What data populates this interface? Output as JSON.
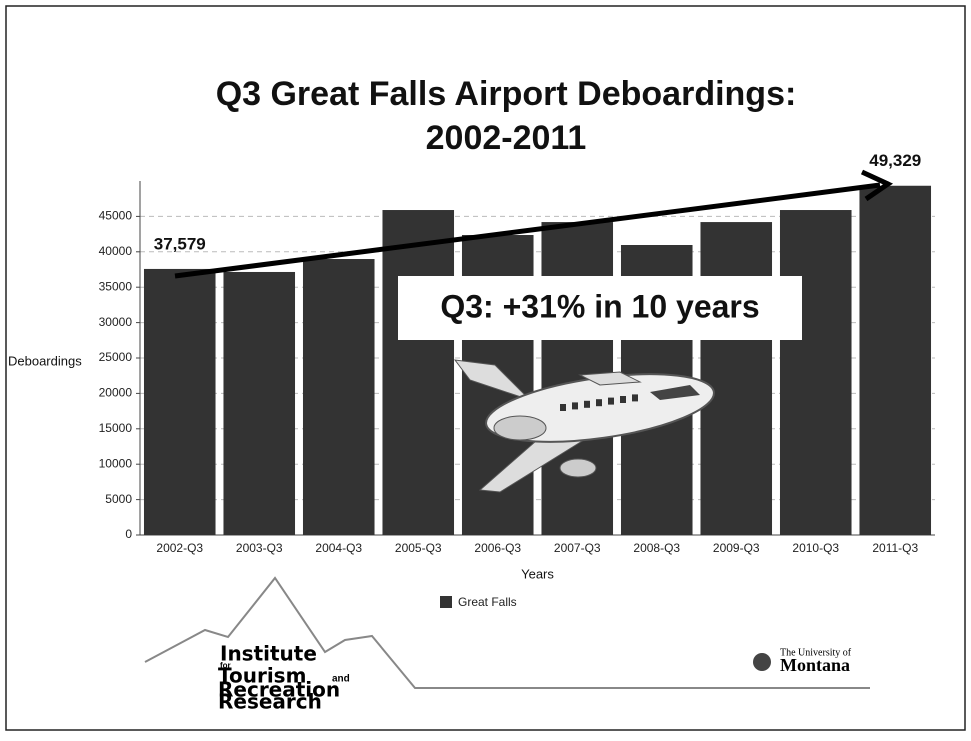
{
  "chart_data": {
    "type": "bar",
    "title": "Q3 Great Falls Airport Deboardings:",
    "subtitle": "2002-2011",
    "categories": [
      "2002-Q3",
      "2003-Q3",
      "2004-Q3",
      "2005-Q3",
      "2006-Q3",
      "2007-Q3",
      "2008-Q3",
      "2009-Q3",
      "2010-Q3",
      "2011-Q3"
    ],
    "series": [
      {
        "name": "Great Falls",
        "color": "#333333",
        "values": [
          37579,
          37150,
          38980,
          45900,
          42370,
          44200,
          40960,
          44200,
          45900,
          49329
        ],
        "value_labels": [
          "37,579",
          null,
          null,
          null,
          null,
          null,
          null,
          null,
          null,
          "49,329"
        ]
      }
    ],
    "ylim": [
      0,
      50000
    ],
    "yticks": [
      0,
      5000,
      10000,
      15000,
      20000,
      25000,
      30000,
      35000,
      40000,
      45000
    ],
    "grid": true,
    "y_label": "Deboardings",
    "x_label": "Years",
    "annotation": "Q3: +31% in 10 years",
    "legend": "bottom"
  },
  "logos": {
    "institute": [
      "Institute",
      "for",
      "Tourism",
      "and",
      "Recreation",
      "Research"
    ],
    "university": [
      "The University of",
      "Montana"
    ]
  }
}
